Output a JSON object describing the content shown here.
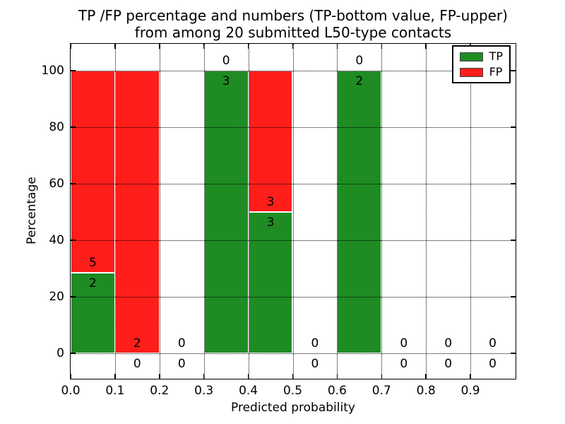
{
  "chart_data": {
    "type": "bar",
    "stacked": true,
    "title_line1": "TP /FP percentage and numbers (TP-bottom value, FP-upper)",
    "title_line2": "from among 20 submitted L50-type contacts",
    "xlabel": "Predicted probability",
    "ylabel": "Percentage",
    "xlim": [
      0.0,
      1.0
    ],
    "ylim": [
      -8.75,
      109.5
    ],
    "x_ticks": [
      "0.0",
      "0.1",
      "0.2",
      "0.3",
      "0.4",
      "0.5",
      "0.6",
      "0.7",
      "0.8",
      "0.9"
    ],
    "y_ticks": [
      0,
      20,
      40,
      60,
      80,
      100
    ],
    "grid": "dotted, both axes",
    "legend_position": "upper right",
    "bin_width": 0.1,
    "series": [
      {
        "name": "TP",
        "color": "#1e8c23"
      },
      {
        "name": "FP",
        "color": "#ff1e1a"
      }
    ],
    "bins": [
      {
        "x_start": 0.0,
        "tp": 2,
        "fp": 5,
        "tp_pct": 28.57,
        "fp_pct": 71.43
      },
      {
        "x_start": 0.1,
        "tp": 0,
        "fp": 2,
        "tp_pct": 0,
        "fp_pct": 100
      },
      {
        "x_start": 0.2,
        "tp": 0,
        "fp": 0,
        "tp_pct": 0,
        "fp_pct": 0
      },
      {
        "x_start": 0.3,
        "tp": 3,
        "fp": 0,
        "tp_pct": 100,
        "fp_pct": 0
      },
      {
        "x_start": 0.4,
        "tp": 3,
        "fp": 3,
        "tp_pct": 50,
        "fp_pct": 50
      },
      {
        "x_start": 0.5,
        "tp": 0,
        "fp": 0,
        "tp_pct": 0,
        "fp_pct": 0
      },
      {
        "x_start": 0.6,
        "tp": 2,
        "fp": 0,
        "tp_pct": 100,
        "fp_pct": 0
      },
      {
        "x_start": 0.7,
        "tp": 0,
        "fp": 0,
        "tp_pct": 0,
        "fp_pct": 0
      },
      {
        "x_start": 0.8,
        "tp": 0,
        "fp": 0,
        "tp_pct": 0,
        "fp_pct": 0
      },
      {
        "x_start": 0.9,
        "tp": 0,
        "fp": 0,
        "tp_pct": 0,
        "fp_pct": 0
      }
    ],
    "legend": {
      "entries": [
        {
          "label": "TP",
          "color": "#1e8c23"
        },
        {
          "label": "FP",
          "color": "#ff1e1a"
        }
      ]
    }
  }
}
